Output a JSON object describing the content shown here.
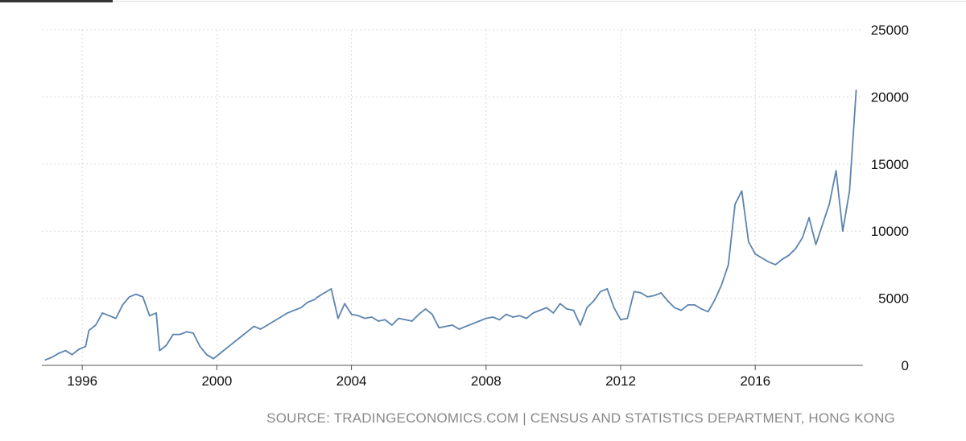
{
  "colors": {
    "line": "#5b84b1",
    "grid": "#d9d9d9",
    "axis": "#555555",
    "source": "#888888"
  },
  "source_text": "SOURCE: TRADINGECONOMICS.COM | CENSUS AND STATISTICS DEPARTMENT, HONG KONG",
  "chart_data": {
    "type": "line",
    "title": "",
    "xlabel": "",
    "ylabel": "",
    "x_ticks": [
      "1996",
      "2000",
      "2004",
      "2008",
      "2012",
      "2016"
    ],
    "y_ticks": [
      "0",
      "5000",
      "10000",
      "15000",
      "20000",
      "25000"
    ],
    "xlim": [
      1994.8,
      2019.2
    ],
    "ylim": [
      0,
      25000
    ],
    "y_axis_side": "right",
    "grid": "dotted",
    "series": [
      {
        "name": "",
        "points": [
          [
            1994.9,
            400
          ],
          [
            1995.1,
            600
          ],
          [
            1995.3,
            900
          ],
          [
            1995.5,
            1100
          ],
          [
            1995.7,
            800
          ],
          [
            1995.9,
            1200
          ],
          [
            1996.1,
            1400
          ],
          [
            1996.2,
            2600
          ],
          [
            1996.4,
            3000
          ],
          [
            1996.6,
            3900
          ],
          [
            1996.8,
            3700
          ],
          [
            1997.0,
            3500
          ],
          [
            1997.2,
            4500
          ],
          [
            1997.4,
            5100
          ],
          [
            1997.6,
            5300
          ],
          [
            1997.8,
            5100
          ],
          [
            1998.0,
            3700
          ],
          [
            1998.2,
            3900
          ],
          [
            1998.3,
            1100
          ],
          [
            1998.5,
            1500
          ],
          [
            1998.7,
            2300
          ],
          [
            1998.9,
            2300
          ],
          [
            1999.1,
            2500
          ],
          [
            1999.3,
            2400
          ],
          [
            1999.5,
            1400
          ],
          [
            1999.7,
            800
          ],
          [
            1999.9,
            500
          ],
          [
            2000.1,
            900
          ],
          [
            2000.3,
            1300
          ],
          [
            2000.5,
            1700
          ],
          [
            2000.7,
            2100
          ],
          [
            2000.9,
            2500
          ],
          [
            2001.1,
            2900
          ],
          [
            2001.3,
            2700
          ],
          [
            2001.5,
            3000
          ],
          [
            2001.7,
            3300
          ],
          [
            2001.9,
            3600
          ],
          [
            2002.1,
            3900
          ],
          [
            2002.3,
            4100
          ],
          [
            2002.5,
            4300
          ],
          [
            2002.7,
            4700
          ],
          [
            2002.9,
            4900
          ],
          [
            2003.0,
            5100
          ],
          [
            2003.2,
            5400
          ],
          [
            2003.4,
            5700
          ],
          [
            2003.6,
            3500
          ],
          [
            2003.8,
            4600
          ],
          [
            2004.0,
            3800
          ],
          [
            2004.2,
            3700
          ],
          [
            2004.4,
            3500
          ],
          [
            2004.6,
            3600
          ],
          [
            2004.8,
            3300
          ],
          [
            2005.0,
            3400
          ],
          [
            2005.2,
            3000
          ],
          [
            2005.4,
            3500
          ],
          [
            2005.6,
            3400
          ],
          [
            2005.8,
            3300
          ],
          [
            2006.0,
            3800
          ],
          [
            2006.2,
            4200
          ],
          [
            2006.4,
            3800
          ],
          [
            2006.6,
            2800
          ],
          [
            2006.8,
            2900
          ],
          [
            2007.0,
            3000
          ],
          [
            2007.2,
            2700
          ],
          [
            2007.4,
            2900
          ],
          [
            2007.6,
            3100
          ],
          [
            2007.8,
            3300
          ],
          [
            2008.0,
            3500
          ],
          [
            2008.2,
            3600
          ],
          [
            2008.4,
            3400
          ],
          [
            2008.6,
            3800
          ],
          [
            2008.8,
            3600
          ],
          [
            2009.0,
            3700
          ],
          [
            2009.2,
            3500
          ],
          [
            2009.4,
            3900
          ],
          [
            2009.6,
            4100
          ],
          [
            2009.8,
            4300
          ],
          [
            2010.0,
            3900
          ],
          [
            2010.2,
            4600
          ],
          [
            2010.4,
            4200
          ],
          [
            2010.6,
            4100
          ],
          [
            2010.8,
            3000
          ],
          [
            2011.0,
            4300
          ],
          [
            2011.2,
            4800
          ],
          [
            2011.4,
            5500
          ],
          [
            2011.6,
            5700
          ],
          [
            2011.8,
            4300
          ],
          [
            2012.0,
            3400
          ],
          [
            2012.2,
            3500
          ],
          [
            2012.4,
            5500
          ],
          [
            2012.6,
            5400
          ],
          [
            2012.8,
            5100
          ],
          [
            2013.0,
            5200
          ],
          [
            2013.2,
            5400
          ],
          [
            2013.4,
            4800
          ],
          [
            2013.6,
            4300
          ],
          [
            2013.8,
            4100
          ],
          [
            2014.0,
            4500
          ],
          [
            2014.2,
            4500
          ],
          [
            2014.4,
            4200
          ],
          [
            2014.6,
            4000
          ],
          [
            2014.8,
            4900
          ],
          [
            2015.0,
            6000
          ],
          [
            2015.2,
            7500
          ],
          [
            2015.4,
            12000
          ],
          [
            2015.6,
            13000
          ],
          [
            2015.8,
            9200
          ],
          [
            2016.0,
            8300
          ],
          [
            2016.2,
            8000
          ],
          [
            2016.4,
            7700
          ],
          [
            2016.6,
            7500
          ],
          [
            2016.8,
            7900
          ],
          [
            2017.0,
            8200
          ],
          [
            2017.2,
            8700
          ],
          [
            2017.4,
            9500
          ],
          [
            2017.6,
            11000
          ],
          [
            2017.8,
            9000
          ],
          [
            2018.0,
            10500
          ],
          [
            2018.2,
            12000
          ],
          [
            2018.4,
            14500
          ],
          [
            2018.6,
            10000
          ],
          [
            2018.8,
            13000
          ],
          [
            2019.0,
            20500
          ]
        ]
      }
    ]
  }
}
